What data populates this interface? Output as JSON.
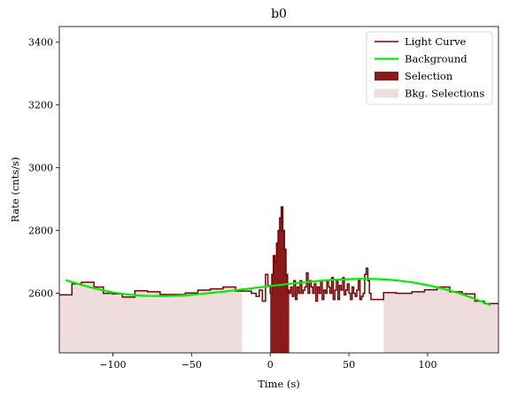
{
  "chart_data": {
    "type": "line",
    "title": "b0",
    "xlabel": "Time (s)",
    "ylabel": "Rate (cnts/s)",
    "xlim": [
      -134,
      145
    ],
    "ylim": [
      2410,
      3450
    ],
    "xticks": [
      -100,
      -50,
      0,
      50,
      100
    ],
    "xtick_labels": [
      "−100",
      "−50",
      "0",
      "50",
      "100"
    ],
    "yticks": [
      2600,
      2800,
      3000,
      3200,
      3400
    ],
    "ytick_labels": [
      "2600",
      "2800",
      "3000",
      "3200",
      "3400"
    ],
    "legend_position": "upper right",
    "colors": {
      "light_curve": "#7a0000",
      "background": "#00ee00",
      "selection": "#8b1a1a",
      "bkg_selection": "#efdcdc"
    },
    "series": [
      {
        "name": "Light Curve",
        "kind": "step",
        "steps": [
          [
            -134,
            2595
          ],
          [
            -126,
            2630
          ],
          [
            -120,
            2635
          ],
          [
            -112,
            2620
          ],
          [
            -106,
            2600
          ],
          [
            -100,
            2598
          ],
          [
            -94,
            2588
          ],
          [
            -86,
            2608
          ],
          [
            -78,
            2605
          ],
          [
            -70,
            2596
          ],
          [
            -62,
            2596
          ],
          [
            -54,
            2601
          ],
          [
            -46,
            2610
          ],
          [
            -38,
            2614
          ],
          [
            -30,
            2620
          ],
          [
            -22,
            2607
          ],
          [
            -12,
            2600
          ],
          [
            -9,
            2590
          ],
          [
            -7,
            2610
          ],
          [
            -5,
            2575
          ],
          [
            -3,
            2660
          ],
          [
            -1.5,
            2625
          ],
          [
            0,
            2600
          ],
          [
            1,
            2660
          ],
          [
            2,
            2720
          ],
          [
            3,
            2700
          ],
          [
            4,
            2760
          ],
          [
            5,
            2800
          ],
          [
            6,
            2840
          ],
          [
            7,
            2875
          ],
          [
            8,
            2800
          ],
          [
            9,
            2740
          ],
          [
            10,
            2660
          ],
          [
            11,
            2610
          ],
          [
            12,
            2600
          ],
          [
            13,
            2620
          ],
          [
            14,
            2590
          ],
          [
            15,
            2640
          ],
          [
            16,
            2580
          ],
          [
            17,
            2620
          ],
          [
            18,
            2600
          ],
          [
            19,
            2640
          ],
          [
            20,
            2600
          ],
          [
            21,
            2610
          ],
          [
            22,
            2620
          ],
          [
            23,
            2665
          ],
          [
            24,
            2600
          ],
          [
            25,
            2640
          ],
          [
            26,
            2620
          ],
          [
            27,
            2600
          ],
          [
            28,
            2630
          ],
          [
            29,
            2575
          ],
          [
            30,
            2620
          ],
          [
            31,
            2600
          ],
          [
            32,
            2640
          ],
          [
            33,
            2580
          ],
          [
            34,
            2610
          ],
          [
            35,
            2600
          ],
          [
            36,
            2640
          ],
          [
            37,
            2620
          ],
          [
            38,
            2600
          ],
          [
            39,
            2650
          ],
          [
            40,
            2580
          ],
          [
            41,
            2610
          ],
          [
            42,
            2640
          ],
          [
            43,
            2580
          ],
          [
            44,
            2625
          ],
          [
            45,
            2610
          ],
          [
            46,
            2650
          ],
          [
            47,
            2595
          ],
          [
            48,
            2610
          ],
          [
            49,
            2630
          ],
          [
            50,
            2600
          ],
          [
            51,
            2580
          ],
          [
            52,
            2620
          ],
          [
            53,
            2600
          ],
          [
            54,
            2590
          ],
          [
            55,
            2610
          ],
          [
            56,
            2640
          ],
          [
            57,
            2580
          ],
          [
            58,
            2590
          ],
          [
            59,
            2600
          ],
          [
            60,
            2660
          ],
          [
            61,
            2680
          ],
          [
            62,
            2640
          ],
          [
            63,
            2600
          ],
          [
            64,
            2580
          ],
          [
            72,
            2602
          ],
          [
            80,
            2600
          ],
          [
            90,
            2605
          ],
          [
            98,
            2611
          ],
          [
            106,
            2620
          ],
          [
            114,
            2605
          ],
          [
            122,
            2598
          ],
          [
            130,
            2575
          ],
          [
            136,
            2567
          ],
          [
            145,
            2567
          ]
        ]
      },
      {
        "name": "Background",
        "kind": "smooth",
        "x": [
          -130,
          -120,
          -110,
          -100,
          -90,
          -80,
          -70,
          -60,
          -50,
          -40,
          -30,
          -20,
          -10,
          0,
          10,
          20,
          30,
          40,
          50,
          60,
          70,
          80,
          90,
          100,
          110,
          120,
          130,
          140
        ],
        "y": [
          2642,
          2627,
          2614,
          2603,
          2596,
          2592,
          2591,
          2592,
          2595,
          2600,
          2605,
          2611,
          2617,
          2623,
          2629,
          2634,
          2639,
          2643,
          2645,
          2646,
          2645,
          2641,
          2635,
          2626,
          2614,
          2600,
          2582,
          2562
        ]
      }
    ],
    "selection_interval": [
      0,
      12
    ],
    "bkg_selection_intervals": [
      [
        -134,
        -18
      ],
      [
        72,
        145
      ]
    ],
    "legend": [
      {
        "label": "Light Curve",
        "kind": "line",
        "color": "#7a0000"
      },
      {
        "label": "Background",
        "kind": "line",
        "color": "#00ee00"
      },
      {
        "label": "Selection",
        "kind": "patch",
        "color": "#8b1a1a"
      },
      {
        "label": "Bkg. Selections",
        "kind": "patch",
        "color": "#efdcdc"
      }
    ]
  }
}
